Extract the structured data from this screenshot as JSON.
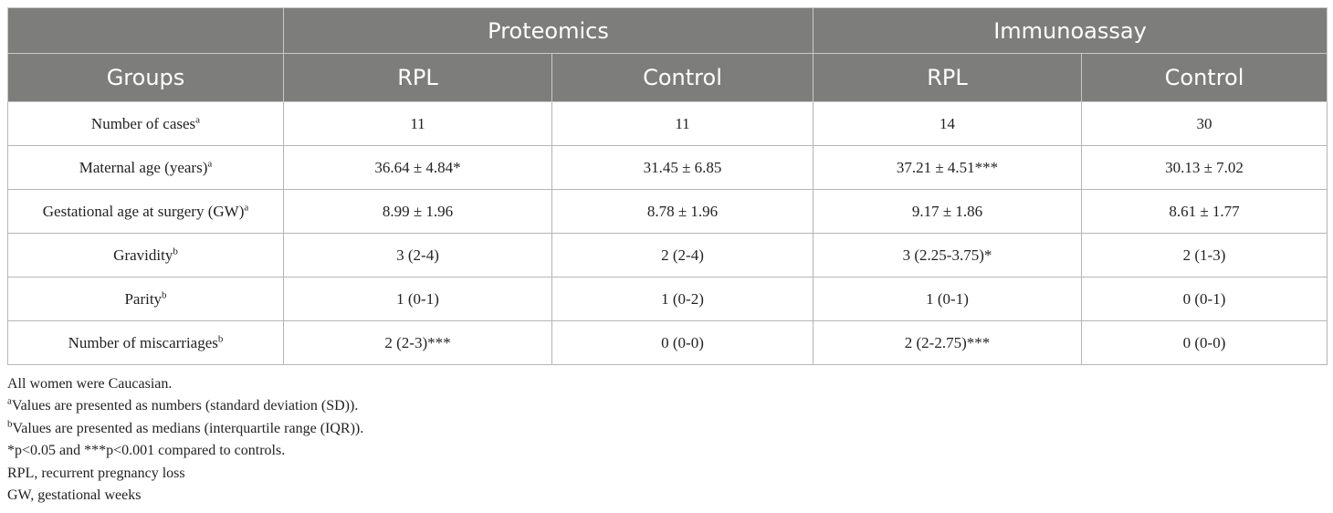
{
  "table": {
    "top_header": {
      "blank": "",
      "proteomics": "Proteomics",
      "immunoassay": "Immunoassay"
    },
    "sub_header": {
      "groups": "Groups",
      "rpl_1": "RPL",
      "control_1": "Control",
      "rpl_2": "RPL",
      "control_2": "Control"
    },
    "rows": [
      {
        "label": "Number of cases",
        "sup": "a",
        "cells": [
          "11",
          "11",
          "14",
          "30"
        ]
      },
      {
        "label": "Maternal age (years)",
        "sup": "a",
        "cells": [
          "36.64 ± 4.84*",
          "31.45 ± 6.85",
          "37.21 ± 4.51***",
          "30.13 ± 7.02"
        ]
      },
      {
        "label": "Gestational age at surgery (GW)",
        "sup": "a",
        "cells": [
          "8.99 ± 1.96",
          "8.78 ± 1.96",
          "9.17 ± 1.86",
          "8.61 ± 1.77"
        ]
      },
      {
        "label": "Gravidity",
        "sup": "b",
        "cells": [
          "3 (2-4)",
          "2 (2-4)",
          "3 (2.25-3.75)*",
          "2 (1-3)"
        ]
      },
      {
        "label": "Parity",
        "sup": "b",
        "cells": [
          "1 (0-1)",
          "1 (0-2)",
          "1 (0-1)",
          "0 (0-1)"
        ]
      },
      {
        "label": "Number of miscarriages",
        "sup": "b",
        "cells": [
          "2 (2-3)***",
          "0 (0-0)",
          "2 (2-2.75)***",
          "0 (0-0)"
        ]
      }
    ]
  },
  "footnotes": {
    "line1": "All women were Caucasian.",
    "a_sup": "a",
    "a_text": "Values are presented as numbers (standard deviation (SD)).",
    "b_sup": "b",
    "b_text": "Values are presented as medians (interquartile range (IQR)).",
    "line4": "*p<0.05 and ***p<0.001 compared to controls.",
    "line5": "RPL, recurrent pregnancy loss",
    "line6": "GW, gestational weeks"
  }
}
